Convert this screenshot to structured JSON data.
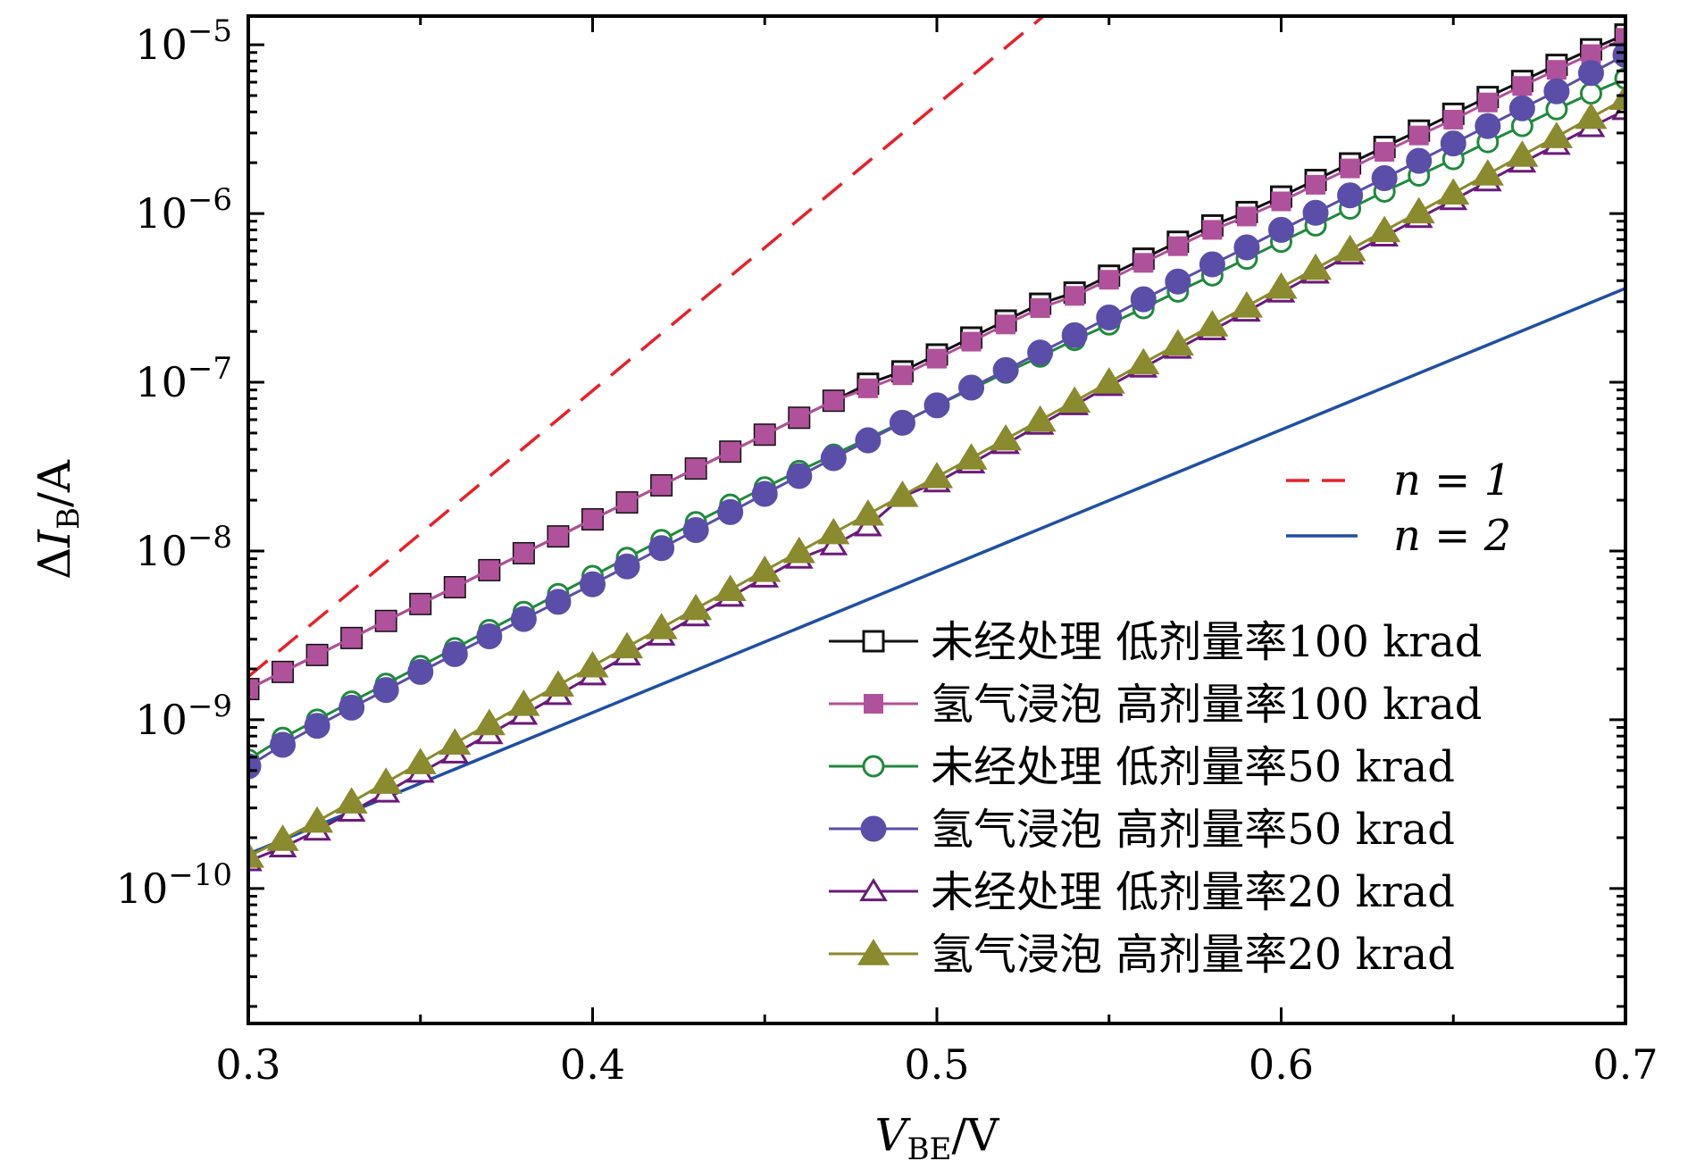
{
  "chart_data": {
    "type": "line",
    "title": "",
    "xlabel": {
      "main": "V",
      "sub": "BE",
      "unit": "/V"
    },
    "ylabel": {
      "prefix": "Δ",
      "main": "I",
      "sub": "B",
      "unit": "/A"
    },
    "xlim": [
      0.3,
      0.7
    ],
    "ylim_log10": [
      -10.8,
      -4.83
    ],
    "yscale": "log",
    "grid": false,
    "x_ticks": [
      "0.3",
      "0.4",
      "0.5",
      "0.6",
      "0.7"
    ],
    "y_ticks": [
      {
        "base": "10",
        "exp": "−10",
        "log": -10
      },
      {
        "base": "10",
        "exp": "−9",
        "log": -9
      },
      {
        "base": "10",
        "exp": "−8",
        "log": -8
      },
      {
        "base": "10",
        "exp": "−7",
        "log": -7
      },
      {
        "base": "10",
        "exp": "−6",
        "log": -6
      },
      {
        "base": "10",
        "exp": "−5",
        "log": -5
      }
    ],
    "reference_lines": [
      {
        "name": "n = 1",
        "color": "#e8202a",
        "style": "dashed",
        "x": [
          0.3,
          0.533
        ],
        "y": [
          1.8e-09,
          1.6e-05
        ]
      },
      {
        "name": "n = 2",
        "color": "#1f4fa6",
        "style": "solid",
        "x": [
          0.3,
          0.7
        ],
        "y": [
          1.6e-10,
          3.6e-07
        ]
      }
    ],
    "x": [
      0.3,
      0.31,
      0.32,
      0.33,
      0.34,
      0.35,
      0.36,
      0.37,
      0.38,
      0.39,
      0.4,
      0.41,
      0.42,
      0.43,
      0.44,
      0.45,
      0.46,
      0.47,
      0.48,
      0.49,
      0.5,
      0.51,
      0.52,
      0.53,
      0.54,
      0.55,
      0.56,
      0.57,
      0.58,
      0.59,
      0.6,
      0.61,
      0.62,
      0.63,
      0.64,
      0.65,
      0.66,
      0.67,
      0.68,
      0.69,
      0.7
    ],
    "series": [
      {
        "name": "未经处理  低剂量率100 krad",
        "color": "#111111",
        "marker": "square-open",
        "values": [
          1.52e-09,
          1.92e-09,
          2.42e-09,
          3.05e-09,
          3.85e-09,
          4.85e-09,
          6.1e-09,
          7.7e-09,
          9.7e-09,
          1.22e-08,
          1.54e-08,
          1.94e-08,
          2.45e-08,
          3.08e-08,
          3.88e-08,
          4.89e-08,
          6.16e-08,
          7.77e-08,
          9.8e-08,
          1.16e-07,
          1.46e-07,
          1.84e-07,
          2.32e-07,
          2.92e-07,
          3.4e-07,
          4.28e-07,
          5.4e-07,
          6.8e-07,
          8.5e-07,
          1.02e-06,
          1.26e-06,
          1.58e-06,
          1.98e-06,
          2.48e-06,
          3.1e-06,
          3.9e-06,
          4.9e-06,
          6.1e-06,
          7.6e-06,
          9.4e-06,
          1.15e-05
        ]
      },
      {
        "name": "氢气浸泡  高剂量率100 krad",
        "color": "#b0519b",
        "marker": "square-filled",
        "values": [
          1.52e-09,
          1.92e-09,
          2.42e-09,
          3.05e-09,
          3.85e-09,
          4.85e-09,
          6.1e-09,
          7.7e-09,
          9.7e-09,
          1.22e-08,
          1.54e-08,
          1.94e-08,
          2.45e-08,
          3.08e-08,
          3.88e-08,
          4.89e-08,
          6.16e-08,
          7.77e-08,
          9.2e-08,
          1.1e-07,
          1.38e-07,
          1.74e-07,
          2.2e-07,
          2.75e-07,
          3.25e-07,
          4.05e-07,
          5.1e-07,
          6.4e-07,
          8e-07,
          9.6e-07,
          1.18e-06,
          1.48e-06,
          1.85e-06,
          2.32e-06,
          2.9e-06,
          3.6e-06,
          4.55e-06,
          5.7e-06,
          7.1e-06,
          8.8e-06,
          1.1e-05
        ]
      },
      {
        "name": "未经处理  低剂量率50 krad",
        "color": "#1e8a3c",
        "marker": "circle-open",
        "values": [
          5.8e-10,
          7.8e-10,
          1e-09,
          1.28e-09,
          1.63e-09,
          2.08e-09,
          2.65e-09,
          3.4e-09,
          4.35e-09,
          5.55e-09,
          7.1e-09,
          9.1e-09,
          1.16e-08,
          1.48e-08,
          1.88e-08,
          2.38e-08,
          2.98e-08,
          3.72e-08,
          4.65e-08,
          5.8e-08,
          7.3e-08,
          9.1e-08,
          1.14e-07,
          1.42e-07,
          1.78e-07,
          2.2e-07,
          2.75e-07,
          3.45e-07,
          4.3e-07,
          5.4e-07,
          6.8e-07,
          8.5e-07,
          1.07e-06,
          1.35e-06,
          1.68e-06,
          2.1e-06,
          2.65e-06,
          3.3e-06,
          4.15e-06,
          5.15e-06,
          6.3e-06
        ]
      },
      {
        "name": "氢气浸泡  高剂量率50 krad",
        "color": "#5a4ea8",
        "marker": "circle-filled",
        "values": [
          5.3e-10,
          7.1e-10,
          9.2e-10,
          1.18e-09,
          1.5e-09,
          1.92e-09,
          2.45e-09,
          3.12e-09,
          3.95e-09,
          5e-09,
          6.35e-09,
          8.1e-09,
          1.04e-08,
          1.33e-08,
          1.7e-08,
          2.18e-08,
          2.78e-08,
          3.55e-08,
          4.52e-08,
          5.75e-08,
          7.3e-08,
          9.3e-08,
          1.18e-07,
          1.5e-07,
          1.9e-07,
          2.42e-07,
          3.1e-07,
          3.95e-07,
          5e-07,
          6.3e-07,
          8e-07,
          1.01e-06,
          1.28e-06,
          1.62e-06,
          2.05e-06,
          2.6e-06,
          3.3e-06,
          4.2e-06,
          5.3e-06,
          6.8e-06,
          8.7e-06
        ]
      },
      {
        "name": "未经处理  低剂量率20 krad",
        "color": "#6b1a7a",
        "marker": "triangle-open",
        "values": [
          1.45e-10,
          1.75e-10,
          2.2e-10,
          2.85e-10,
          3.7e-10,
          4.85e-10,
          6.3e-10,
          8.2e-10,
          1.07e-09,
          1.4e-09,
          1.83e-09,
          2.4e-09,
          3.15e-09,
          4.1e-09,
          5.35e-09,
          6.95e-09,
          9e-09,
          1.08e-08,
          1.4e-08,
          2.1e-08,
          2.55e-08,
          3.3e-08,
          4.3e-08,
          5.6e-08,
          7.3e-08,
          9.5e-08,
          1.22e-07,
          1.58e-07,
          2.03e-07,
          2.62e-07,
          3.4e-07,
          4.4e-07,
          5.7e-07,
          7.3e-07,
          9.4e-07,
          1.2e-06,
          1.55e-06,
          2e-06,
          2.55e-06,
          3.25e-06,
          4.1e-06
        ]
      },
      {
        "name": "氢气浸泡  高剂量率20 krad",
        "color": "#8a8a2e",
        "marker": "triangle-filled",
        "values": [
          1.55e-10,
          1.95e-10,
          2.5e-10,
          3.25e-10,
          4.25e-10,
          5.55e-10,
          7.25e-10,
          9.45e-10,
          1.23e-09,
          1.6e-09,
          2.08e-09,
          2.7e-09,
          3.5e-09,
          4.55e-09,
          5.9e-09,
          7.65e-09,
          9.9e-09,
          1.28e-08,
          1.65e-08,
          2.13e-08,
          2.75e-08,
          3.55e-08,
          4.6e-08,
          5.95e-08,
          7.7e-08,
          1e-07,
          1.3e-07,
          1.68e-07,
          2.18e-07,
          2.82e-07,
          3.65e-07,
          4.72e-07,
          6.1e-07,
          7.9e-07,
          1.02e-06,
          1.32e-06,
          1.71e-06,
          2.21e-06,
          2.85e-06,
          3.7e-06,
          4.8e-06
        ]
      }
    ],
    "legend_position": "right"
  }
}
